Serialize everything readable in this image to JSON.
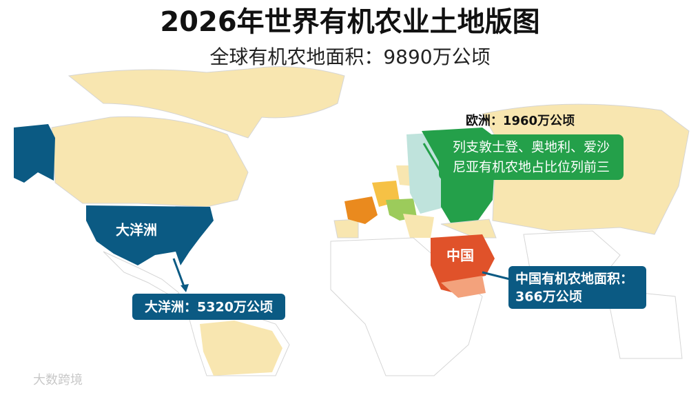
{
  "header": {
    "title": "2026年世界有机农业土地版图",
    "subtitle": "全球有机农地面积：9890万公顷"
  },
  "map_labels": {
    "usa": "大洋洲",
    "china": "中国"
  },
  "callouts": {
    "europe_total": "欧洲：1960万公顷",
    "europe_note": [
      "列支敦士登、奥地利、爱沙",
      "尼亚有机农地占比位列前三"
    ],
    "oceania_total": "大洋洲：5320万公顷",
    "china_total": [
      "中国有机农地面积：",
      "366万公顷"
    ]
  },
  "watermark": "大数跨境"
}
